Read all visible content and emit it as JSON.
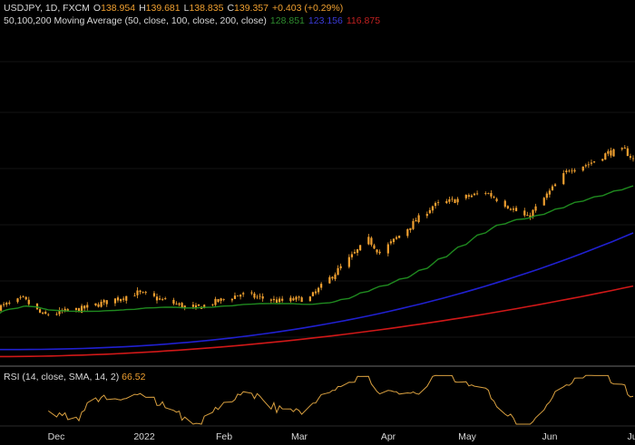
{
  "header": {
    "symbol": "USDJPY, 1D, FXCM",
    "open_label": "O",
    "open": "138.954",
    "high_label": "H",
    "high": "139.681",
    "low_label": "L",
    "low": "138.835",
    "close_label": "C",
    "close": "139.357",
    "change": "+0.403 (+0.29%)"
  },
  "ma_legend": {
    "label": "50,100,200 Moving Average (50, close, 100, close, 200, close)",
    "ma50": "128.851",
    "ma100": "123.156",
    "ma200": "116.875"
  },
  "rsi": {
    "label": "RSI (14, close, SMA, 14, 2)",
    "value": "66.52"
  },
  "x_axis": {
    "labels": [
      "Dec",
      "2022",
      "Feb",
      "Mar",
      "Apr",
      "May",
      "Jun",
      "Ju"
    ]
  },
  "colors": {
    "background": "#000000",
    "candles": "#f0a030",
    "ma50": "#1f8a1f",
    "ma100": "#2020d0",
    "ma200": "#d01818",
    "rsi": "#d9a040"
  },
  "chart_data": {
    "type": "candlestick",
    "title": "USDJPY, 1D, FXCM",
    "x_labels": [
      "Dec",
      "2022",
      "Feb",
      "Mar",
      "Apr",
      "May",
      "Jun",
      "Ju"
    ],
    "anchors_close": [
      [
        "2021-11-15",
        114.0
      ],
      [
        "2021-11-24",
        115.2
      ],
      [
        "2021-12-01",
        112.9
      ],
      [
        "2021-12-15",
        113.8
      ],
      [
        "2022-01-04",
        116.1
      ],
      [
        "2022-01-24",
        113.8
      ],
      [
        "2022-02-10",
        115.9
      ],
      [
        "2022-02-24",
        114.9
      ],
      [
        "2022-03-07",
        115.4
      ],
      [
        "2022-03-28",
        123.7
      ],
      [
        "2022-04-01",
        121.8
      ],
      [
        "2022-04-20",
        128.5
      ],
      [
        "2022-05-09",
        130.5
      ],
      [
        "2022-05-24",
        126.8
      ],
      [
        "2022-06-08",
        133.8
      ],
      [
        "2022-06-15",
        134.5
      ],
      [
        "2022-06-22",
        136.1
      ],
      [
        "2022-06-28",
        136.4
      ],
      [
        "2022-07-01",
        135.2
      ]
    ],
    "ma50_end": 128.851,
    "ma100_end": 123.156,
    "ma200_end": 116.875,
    "rsi_last": 66.52,
    "rsi_scale": [
      0,
      100
    ]
  }
}
